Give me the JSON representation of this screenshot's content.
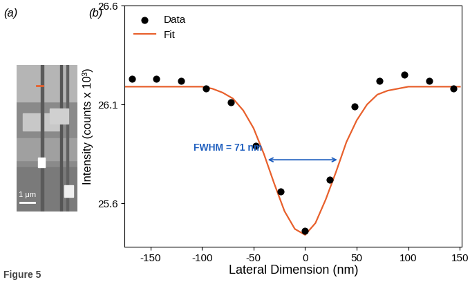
{
  "figure_label": "Figure 5",
  "panel_labels": [
    "(a)",
    "(b)"
  ],
  "image": {
    "scale_bar": "1 μm"
  },
  "chart_data": {
    "type": "scatter",
    "x_label": "Lateral Dimension (nm)",
    "y_label": "Intensity (counts x 10³)",
    "series": [
      {
        "name": "Data",
        "type": "scatter",
        "color": "#000000",
        "marker": "o",
        "x": [
          -168,
          -144,
          -120,
          -96,
          -72,
          -48,
          -24,
          0,
          24,
          48,
          72,
          96,
          120,
          144
        ],
        "values": [
          26.23,
          26.23,
          26.22,
          26.18,
          26.11,
          25.89,
          25.66,
          25.46,
          25.72,
          26.09,
          26.22,
          26.25,
          26.22,
          26.18
        ]
      },
      {
        "name": "Fit",
        "type": "line",
        "color": "#e8602c",
        "line_style": "solid",
        "x": [
          -175,
          -100,
          -90,
          -80,
          -70,
          -60,
          -50,
          -40,
          -30,
          -20,
          -10,
          0,
          10,
          20,
          30,
          40,
          50,
          60,
          70,
          80,
          90,
          100,
          150
        ],
        "values": [
          26.19,
          26.19,
          26.18,
          26.16,
          26.13,
          26.07,
          25.98,
          25.85,
          25.7,
          25.56,
          25.47,
          25.44,
          25.5,
          25.62,
          25.76,
          25.91,
          26.02,
          26.1,
          26.15,
          26.17,
          26.18,
          26.19,
          26.19
        ]
      }
    ],
    "xlim": [
      -175,
      152
    ],
    "xticks": [
      -150,
      -100,
      -50,
      0,
      50,
      100,
      150
    ],
    "ylim": [
      25.38,
      26.6
    ],
    "yticks": [
      25.6,
      26.1,
      26.6
    ],
    "legend": "upper left",
    "annotations": [
      {
        "text": "FWHM = 71 nm",
        "x": [
          -38,
          33
        ],
        "y": 25.82,
        "color": "#1f5fbf"
      }
    ]
  }
}
